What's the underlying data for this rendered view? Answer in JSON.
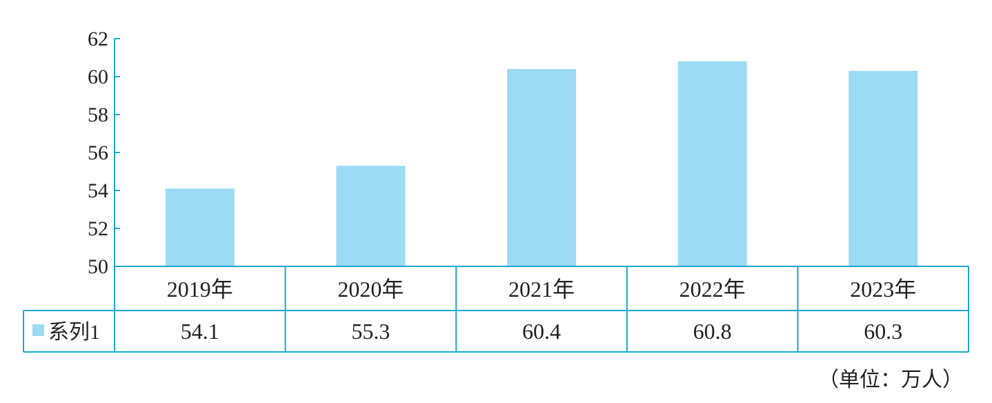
{
  "chart_data": {
    "type": "bar",
    "categories": [
      "2019年",
      "2020年",
      "2021年",
      "2022年",
      "2023年"
    ],
    "series": [
      {
        "name": "系列1",
        "values": [
          54.1,
          55.3,
          60.4,
          60.8,
          60.3
        ]
      }
    ],
    "value_labels": [
      "54.1",
      "55.3",
      "60.4",
      "60.8",
      "60.3"
    ],
    "ylim": [
      50,
      62
    ],
    "yticks": [
      "50",
      "52",
      "54",
      "56",
      "58",
      "60",
      "62"
    ],
    "grid": false,
    "data_table": true,
    "legend": "data-table-left",
    "colors": {
      "bar": "#9bdcf4",
      "axis": "#1aa7cf",
      "text": "#231f20"
    }
  },
  "unit_note": "（单位：万人）"
}
